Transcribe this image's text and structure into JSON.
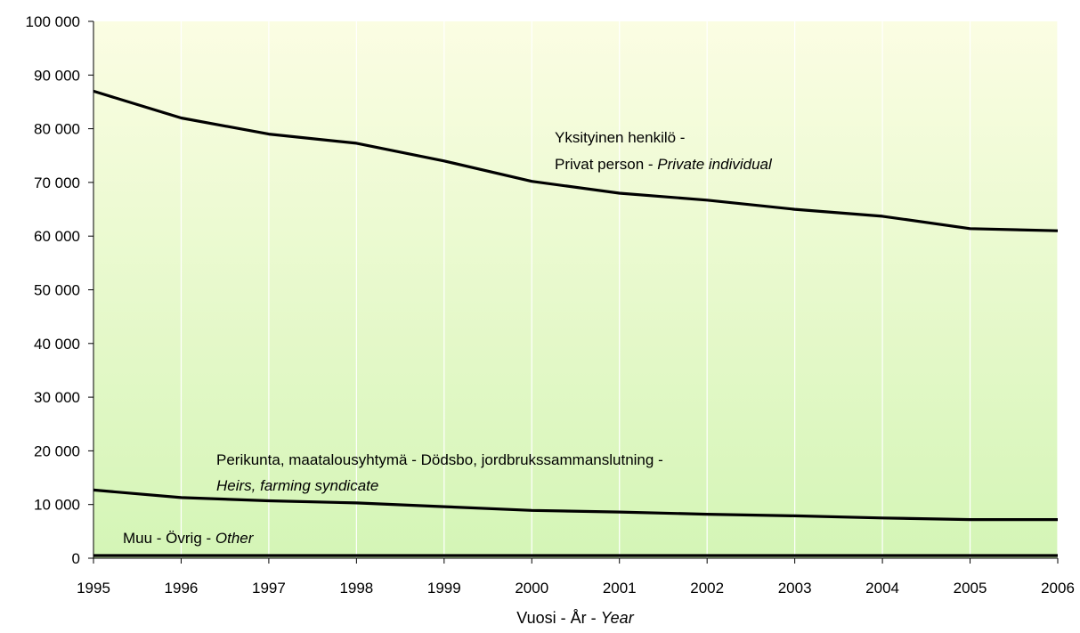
{
  "chart_data": {
    "type": "line",
    "x": [
      1995,
      1996,
      1997,
      1998,
      1999,
      2000,
      2001,
      2002,
      2003,
      2004,
      2005,
      2006
    ],
    "ylim": [
      0,
      100000
    ],
    "yticks": [
      "0",
      "10 000",
      "20 000",
      "30 000",
      "40 000",
      "50 000",
      "60 000",
      "70 000",
      "80 000",
      "90 000",
      "100 000"
    ],
    "xticks": [
      "1995",
      "1996",
      "1997",
      "1998",
      "1999",
      "2000",
      "2001",
      "2002",
      "2003",
      "2004",
      "2005",
      "2006"
    ],
    "xlabel": {
      "plain": "Vuosi - År - ",
      "italic": "Year"
    },
    "grid": {
      "horizontal": false,
      "vertical": true
    },
    "colors": {
      "background_top": "#fbfde3",
      "background_bottom": "#d4f5b6",
      "gridline": "#ffffff",
      "line": "#000000"
    },
    "series": [
      {
        "name": "Yksityinen henkilö - Privat person - Private individual",
        "label_lines": [
          {
            "plain": "Yksityinen henkilö -",
            "italic": ""
          },
          {
            "plain": "Privat person - ",
            "italic": "Private  individual"
          }
        ],
        "values": [
          87000,
          82000,
          79000,
          77300,
          74000,
          70200,
          68000,
          66700,
          65000,
          63700,
          61400,
          61000
        ]
      },
      {
        "name": "Perikunta, maatalousyhtymä - Dödsbo, jordbrukssammanslutning - Heirs, farming syndicate",
        "label_lines": [
          {
            "plain": "Perikunta, maatalousyhtymä - Dödsbo, jordbrukssammanslutning -",
            "italic": ""
          },
          {
            "plain": "",
            "italic": "Heirs, farming syndicate"
          }
        ],
        "values": [
          12700,
          11300,
          10700,
          10300,
          9600,
          8900,
          8600,
          8200,
          7900,
          7500,
          7200,
          7200
        ]
      },
      {
        "name": "Muu - Övrig - Other",
        "label_lines": [
          {
            "plain": "Muu - Övrig - ",
            "italic": "Other"
          }
        ],
        "values": [
          500,
          500,
          500,
          500,
          500,
          500,
          500,
          500,
          500,
          500,
          500,
          500
        ]
      }
    ]
  }
}
